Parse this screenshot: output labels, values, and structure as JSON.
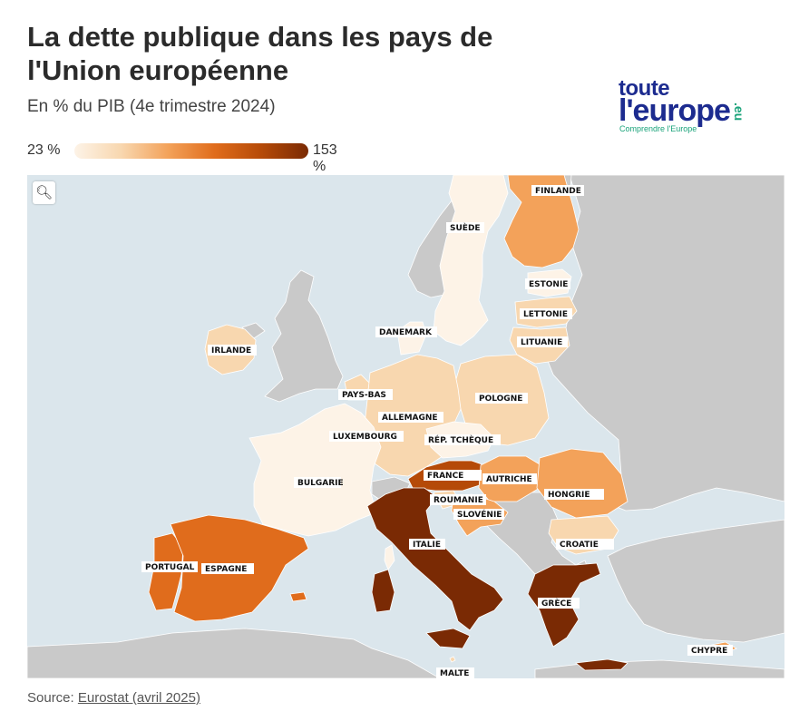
{
  "header": {
    "title": "La dette publique dans les pays de l'Union européenne",
    "subtitle": "En % du PIB (4e trimestre 2024)"
  },
  "logo": {
    "line1": "toute",
    "line2": "l'europe",
    "suffix": ".eu",
    "tagline": "Comprendre l'Europe"
  },
  "legend": {
    "min_label": "23 %",
    "max_label": "153 %"
  },
  "colors": {
    "sea": "#dbe6ec",
    "non_eu_land": "#c9c9c9",
    "border": "#ffffff",
    "scale": [
      "#fdf3e7",
      "#f8d7af",
      "#f3a25a",
      "#e06c1c",
      "#b54a08",
      "#7a2a04"
    ]
  },
  "map": {
    "zoom_icon": "search-icon",
    "countries": [
      {
        "label": "FINLANDE",
        "shade": 2
      },
      {
        "label": "SUÈDE",
        "shade": 0
      },
      {
        "label": "ESTONIE",
        "shade": 0
      },
      {
        "label": "LETTONIE",
        "shade": 1
      },
      {
        "label": "LITUANIE",
        "shade": 1
      },
      {
        "label": "DANEMARK",
        "shade": 0
      },
      {
        "label": "IRLANDE",
        "shade": 1
      },
      {
        "label": "PAYS-BAS",
        "shade": 1
      },
      {
        "label": "POLOGNE",
        "shade": 1
      },
      {
        "label": "ALLEMAGNE",
        "shade": 1
      },
      {
        "label": "LUXEMBOURG",
        "shade": 0
      },
      {
        "label": "RÉP. TCHÈQUE",
        "shade": 0
      },
      {
        "label": "FRANCE",
        "shade": 4
      },
      {
        "label": "AUTRICHE",
        "shade": 2
      },
      {
        "label": "HONGRIE",
        "shade": 2
      },
      {
        "label": "ROUMANIE",
        "shade": 1
      },
      {
        "label": "SLOVÉNIE",
        "shade": 2
      },
      {
        "label": "CROATIE",
        "shade": 1
      },
      {
        "label": "BULGARIE",
        "shade": 0
      },
      {
        "label": "ITALIE",
        "shade": 5
      },
      {
        "label": "PORTUGAL",
        "shade": 3
      },
      {
        "label": "ESPAGNE",
        "shade": 3
      },
      {
        "label": "GRÈCE",
        "shade": 5
      },
      {
        "label": "CHYPRE",
        "shade": 2
      },
      {
        "label": "MALTE",
        "shade": 1
      }
    ]
  },
  "source": {
    "prefix": "Source: ",
    "link_text": "Eurostat (avril 2025)"
  }
}
